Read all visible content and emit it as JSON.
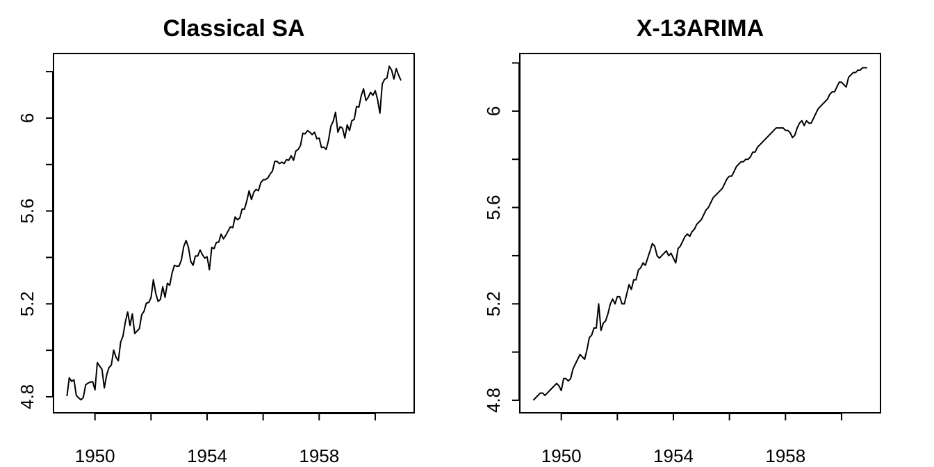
{
  "chart_data": [
    {
      "type": "line",
      "title": "Classical SA",
      "color": "#000000",
      "xlim": [
        1948.52,
        1961.39
      ],
      "xticks": [
        1950,
        1954,
        1958
      ],
      "xminor_ticks": [
        1952,
        1956,
        1960
      ],
      "ylim": [
        4.731,
        6.278
      ],
      "yticks": [
        4.8,
        5.2,
        5.6,
        6.0
      ],
      "yminor_ticks": [
        5.0,
        5.4,
        5.8,
        6.2
      ],
      "x": [
        1949,
        1949.083,
        1949.167,
        1949.25,
        1949.333,
        1949.417,
        1949.5,
        1949.583,
        1949.667,
        1949.75,
        1949.833,
        1949.917,
        1950,
        1950.083,
        1950.167,
        1950.25,
        1950.333,
        1950.417,
        1950.5,
        1950.583,
        1950.667,
        1950.75,
        1950.833,
        1950.917,
        1951,
        1951.083,
        1951.167,
        1951.25,
        1951.333,
        1951.417,
        1951.5,
        1951.583,
        1951.667,
        1951.75,
        1951.833,
        1951.917,
        1952,
        1952.083,
        1952.167,
        1952.25,
        1952.333,
        1952.417,
        1952.5,
        1952.583,
        1952.667,
        1952.75,
        1952.833,
        1952.917,
        1953,
        1953.083,
        1953.167,
        1953.25,
        1953.333,
        1953.417,
        1953.5,
        1953.583,
        1953.667,
        1953.75,
        1953.833,
        1953.917,
        1954,
        1954.083,
        1954.167,
        1954.25,
        1954.333,
        1954.417,
        1954.5,
        1954.583,
        1954.667,
        1954.75,
        1954.833,
        1954.917,
        1955,
        1955.083,
        1955.167,
        1955.25,
        1955.333,
        1955.417,
        1955.5,
        1955.583,
        1955.667,
        1955.75,
        1955.833,
        1955.917,
        1956,
        1956.083,
        1956.167,
        1956.25,
        1956.333,
        1956.417,
        1956.5,
        1956.583,
        1956.667,
        1956.75,
        1956.833,
        1956.917,
        1957,
        1957.083,
        1957.167,
        1957.25,
        1957.333,
        1957.417,
        1957.5,
        1957.583,
        1957.667,
        1957.75,
        1957.833,
        1957.917,
        1958,
        1958.083,
        1958.167,
        1958.25,
        1958.333,
        1958.417,
        1958.5,
        1958.583,
        1958.667,
        1958.75,
        1958.833,
        1958.917,
        1959,
        1959.083,
        1959.167,
        1959.25,
        1959.333,
        1959.417,
        1959.5,
        1959.583,
        1959.667,
        1959.75,
        1959.833,
        1959.917,
        1960,
        1960.083,
        1960.167,
        1960.25,
        1960.333,
        1960.417,
        1960.5,
        1960.583,
        1960.667,
        1960.75,
        1960.833,
        1960.917
      ],
      "values": [
        4.803,
        4.882,
        4.866,
        4.873,
        4.806,
        4.795,
        4.787,
        4.797,
        4.851,
        4.859,
        4.863,
        4.865,
        4.83,
        4.947,
        4.932,
        4.918,
        4.838,
        4.894,
        4.926,
        4.936,
        5.001,
        4.97,
        4.955,
        5.036,
        5.062,
        5.122,
        5.165,
        5.107,
        5.157,
        5.072,
        5.083,
        5.093,
        5.153,
        5.168,
        5.203,
        5.206,
        5.227,
        5.304,
        5.246,
        5.211,
        5.219,
        5.274,
        5.228,
        5.289,
        5.28,
        5.332,
        5.366,
        5.362,
        5.363,
        5.389,
        5.447,
        5.473,
        5.444,
        5.383,
        5.366,
        5.406,
        5.406,
        5.432,
        5.412,
        5.397,
        5.403,
        5.347,
        5.443,
        5.438,
        5.465,
        5.466,
        5.5,
        5.48,
        5.495,
        5.514,
        5.532,
        5.528,
        5.574,
        5.562,
        5.57,
        5.608,
        5.608,
        5.643,
        5.687,
        5.649,
        5.681,
        5.693,
        5.687,
        5.722,
        5.734,
        5.735,
        5.742,
        5.759,
        5.772,
        5.814,
        5.813,
        5.804,
        5.81,
        5.804,
        5.821,
        5.818,
        5.838,
        5.818,
        5.858,
        5.865,
        5.882,
        5.935,
        5.932,
        5.946,
        5.939,
        5.929,
        5.939,
        5.911,
        5.914,
        5.873,
        5.875,
        5.865,
        5.904,
        5.965,
        5.986,
        6.025,
        5.939,
        5.963,
        5.956,
        5.914,
        5.971,
        5.946,
        5.989,
        5.994,
        6.05,
        6.047,
        6.096,
        6.126,
        6.076,
        6.089,
        6.111,
        6.098,
        6.118,
        6.08,
        6.021,
        6.146,
        6.167,
        6.172,
        6.223,
        6.207,
        6.168,
        6.213,
        6.185,
        6.162
      ]
    },
    {
      "type": "line",
      "title": "X-13ARIMA",
      "color": "#000000",
      "xlim": [
        1948.52,
        1961.39
      ],
      "xticks": [
        1950,
        1954,
        1958
      ],
      "xminor_ticks": [
        1952,
        1956,
        1960
      ],
      "ylim": [
        4.748,
        6.239
      ],
      "yticks": [
        4.8,
        5.2,
        5.6,
        6.0
      ],
      "yminor_ticks": [
        5.0,
        5.4,
        5.8,
        6.2
      ],
      "x": [
        1949,
        1949.083,
        1949.167,
        1949.25,
        1949.333,
        1949.417,
        1949.5,
        1949.583,
        1949.667,
        1949.75,
        1949.833,
        1949.917,
        1950,
        1950.083,
        1950.167,
        1950.25,
        1950.333,
        1950.417,
        1950.5,
        1950.583,
        1950.667,
        1950.75,
        1950.833,
        1950.917,
        1951,
        1951.083,
        1951.167,
        1951.25,
        1951.333,
        1951.417,
        1951.5,
        1951.583,
        1951.667,
        1951.75,
        1951.833,
        1951.917,
        1952,
        1952.083,
        1952.167,
        1952.25,
        1952.333,
        1952.417,
        1952.5,
        1952.583,
        1952.667,
        1952.75,
        1952.833,
        1952.917,
        1953,
        1953.083,
        1953.167,
        1953.25,
        1953.333,
        1953.417,
        1953.5,
        1953.583,
        1953.667,
        1953.75,
        1953.833,
        1953.917,
        1954,
        1954.083,
        1954.167,
        1954.25,
        1954.333,
        1954.417,
        1954.5,
        1954.583,
        1954.667,
        1954.75,
        1954.833,
        1954.917,
        1955,
        1955.083,
        1955.167,
        1955.25,
        1955.333,
        1955.417,
        1955.5,
        1955.583,
        1955.667,
        1955.75,
        1955.833,
        1955.917,
        1956,
        1956.083,
        1956.167,
        1956.25,
        1956.333,
        1956.417,
        1956.5,
        1956.583,
        1956.667,
        1956.75,
        1956.833,
        1956.917,
        1957,
        1957.083,
        1957.167,
        1957.25,
        1957.333,
        1957.417,
        1957.5,
        1957.583,
        1957.667,
        1957.75,
        1957.833,
        1957.917,
        1958,
        1958.083,
        1958.167,
        1958.25,
        1958.333,
        1958.417,
        1958.5,
        1958.583,
        1958.667,
        1958.75,
        1958.833,
        1958.917,
        1959,
        1959.083,
        1959.167,
        1959.25,
        1959.333,
        1959.417,
        1959.5,
        1959.583,
        1959.667,
        1959.75,
        1959.833,
        1959.917,
        1960,
        1960.083,
        1960.167,
        1960.25,
        1960.333,
        1960.417,
        1960.5,
        1960.583,
        1960.667,
        1960.75,
        1960.833,
        1960.917
      ],
      "values": [
        4.8,
        4.81,
        4.82,
        4.83,
        4.83,
        4.82,
        4.83,
        4.84,
        4.85,
        4.86,
        4.87,
        4.86,
        4.84,
        4.89,
        4.89,
        4.88,
        4.89,
        4.93,
        4.95,
        4.97,
        4.99,
        4.98,
        4.97,
        5.01,
        5.06,
        5.07,
        5.1,
        5.1,
        5.2,
        5.09,
        5.12,
        5.13,
        5.16,
        5.2,
        5.22,
        5.2,
        5.23,
        5.23,
        5.2,
        5.2,
        5.24,
        5.28,
        5.26,
        5.3,
        5.3,
        5.34,
        5.35,
        5.37,
        5.36,
        5.39,
        5.42,
        5.45,
        5.44,
        5.4,
        5.39,
        5.4,
        5.41,
        5.42,
        5.4,
        5.41,
        5.39,
        5.37,
        5.43,
        5.44,
        5.46,
        5.48,
        5.49,
        5.48,
        5.5,
        5.51,
        5.53,
        5.54,
        5.55,
        5.57,
        5.59,
        5.6,
        5.62,
        5.64,
        5.65,
        5.66,
        5.67,
        5.68,
        5.7,
        5.72,
        5.73,
        5.73,
        5.75,
        5.77,
        5.78,
        5.79,
        5.79,
        5.8,
        5.8,
        5.81,
        5.83,
        5.83,
        5.85,
        5.86,
        5.87,
        5.88,
        5.89,
        5.9,
        5.91,
        5.92,
        5.93,
        5.93,
        5.93,
        5.93,
        5.92,
        5.92,
        5.91,
        5.89,
        5.9,
        5.93,
        5.95,
        5.96,
        5.94,
        5.96,
        5.95,
        5.95,
        5.97,
        5.99,
        6.01,
        6.02,
        6.03,
        6.04,
        6.05,
        6.07,
        6.08,
        6.08,
        6.1,
        6.12,
        6.12,
        6.11,
        6.1,
        6.14,
        6.15,
        6.16,
        6.16,
        6.17,
        6.17,
        6.18,
        6.18,
        6.18
      ]
    }
  ]
}
